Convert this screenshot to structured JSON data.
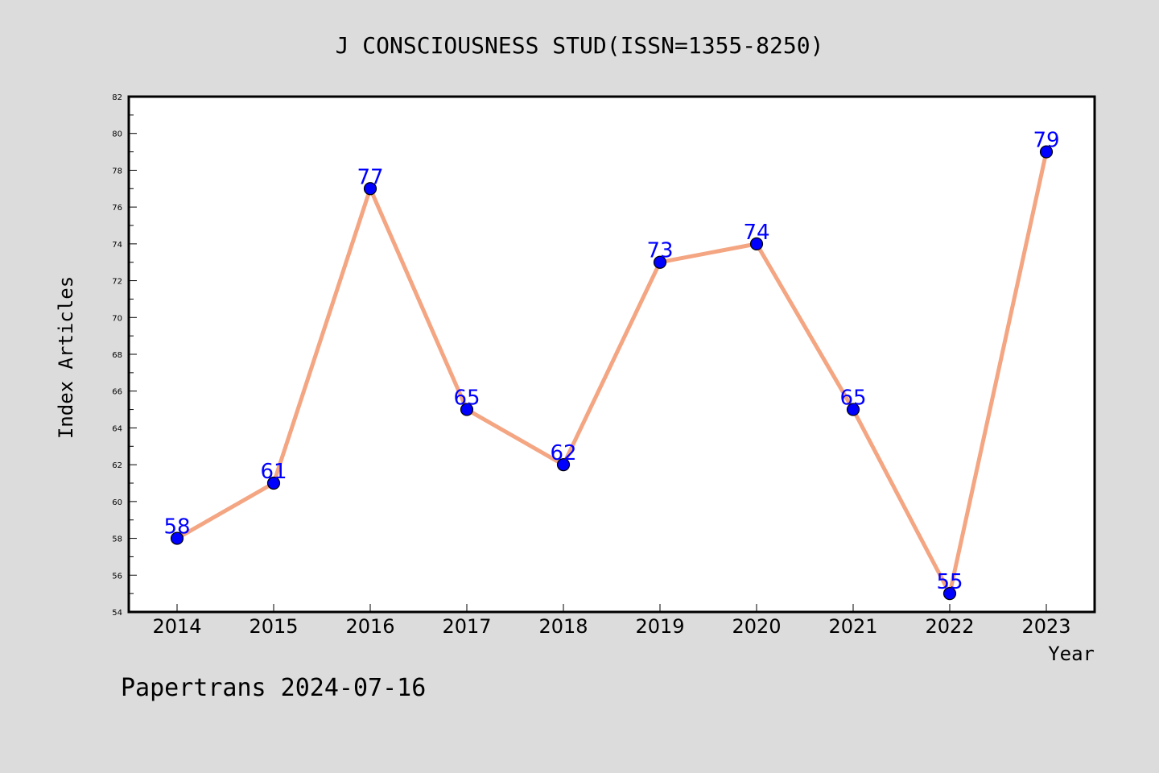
{
  "chart_data": {
    "type": "line",
    "title": "J CONSCIOUSNESS STUD(ISSN=1355-8250)",
    "xlabel": "Year",
    "ylabel": "Index Articles",
    "footer": "Papertrans 2024-07-16",
    "categories": [
      "2014",
      "2015",
      "2016",
      "2017",
      "2018",
      "2019",
      "2020",
      "2021",
      "2022",
      "2023"
    ],
    "series": [
      {
        "values": [
          58,
          61,
          77,
          65,
          62,
          73,
          74,
          65,
          55,
          79
        ]
      }
    ],
    "data_labels": [
      "58",
      "61",
      "77",
      "65",
      "62",
      "73",
      "74",
      "65",
      "55",
      "79"
    ],
    "ylim": [
      54,
      82
    ],
    "ytick_labels": [
      "54",
      "56",
      "58",
      "60",
      "62",
      "64",
      "66",
      "68",
      "70",
      "72",
      "74",
      "76",
      "78",
      "80",
      "82"
    ],
    "grid": false,
    "legend": "none",
    "colors": {
      "background": "#dcdcdc",
      "plot_background": "#ffffff",
      "line": "#f4a582",
      "marker": "#0000ff",
      "data_label": "#0000ff"
    }
  }
}
